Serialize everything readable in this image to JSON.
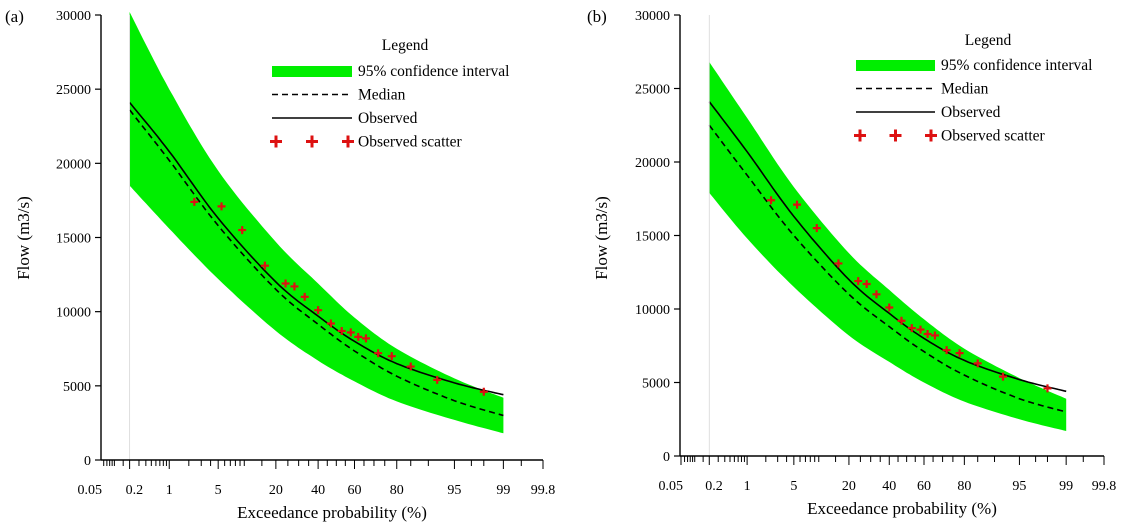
{
  "chart_data": [
    {
      "panel_label": "(a)",
      "type": "line",
      "xlabel": "Exceedance probability (%)",
      "ylabel": "Flow (m3/s)",
      "x_scale": "normal-probability",
      "x_tick_labels": [
        "0.05",
        "0.2",
        "1",
        "5",
        "20",
        "40",
        "60",
        "80",
        "95",
        "99",
        "99.8"
      ],
      "x_ticks": [
        0.05,
        0.2,
        1,
        5,
        20,
        40,
        60,
        80,
        95,
        99,
        99.8
      ],
      "xlim": [
        0.02,
        99.9
      ],
      "y_ticks": [
        0,
        5000,
        10000,
        15000,
        20000,
        25000,
        30000
      ],
      "ylim": [
        0,
        30000
      ],
      "legend": {
        "title": "Legend",
        "placement": "top-right",
        "entries": [
          "95% confidence interval",
          "Median",
          "Observed",
          "Observed scatter"
        ]
      },
      "series": [
        {
          "name": "95% confidence interval",
          "kind": "band",
          "x": [
            0.2,
            1,
            5,
            20,
            40,
            60,
            80,
            95,
            99
          ],
          "upper": [
            30200,
            25000,
            19500,
            14700,
            11900,
            9600,
            7500,
            5500,
            4200
          ],
          "lower": [
            18500,
            15600,
            12200,
            8700,
            6700,
            5300,
            3950,
            2700,
            1800
          ]
        },
        {
          "name": "Median",
          "kind": "dashed",
          "x": [
            0.2,
            1,
            5,
            20,
            40,
            60,
            80,
            95,
            99
          ],
          "y": [
            23600,
            20200,
            15800,
            11500,
            9150,
            7350,
            5650,
            4000,
            3000
          ]
        },
        {
          "name": "Observed",
          "kind": "solid",
          "x": [
            0.2,
            1,
            5,
            20,
            40,
            60,
            80,
            95,
            99
          ],
          "y": [
            24100,
            20800,
            16300,
            12000,
            9700,
            8000,
            6500,
            5200,
            4400
          ]
        },
        {
          "name": "Observed scatter",
          "kind": "marker",
          "x": [
            2.4,
            5.5,
            9.5,
            16,
            24,
            28,
            33,
            40,
            47,
            53,
            58,
            62,
            66,
            72,
            78,
            85,
            92,
            98
          ],
          "y": [
            17400,
            17100,
            15500,
            13100,
            11900,
            11700,
            11000,
            10100,
            9200,
            8700,
            8600,
            8300,
            8200,
            7200,
            7000,
            6300,
            5400,
            4600
          ]
        }
      ]
    },
    {
      "panel_label": "(b)",
      "type": "line",
      "xlabel": "Exceedance probability (%)",
      "ylabel": "Flow (m3/s)",
      "x_scale": "normal-probability",
      "x_tick_labels": [
        "0.05",
        "0.2",
        "1",
        "5",
        "20",
        "40",
        "60",
        "80",
        "95",
        "99",
        "99.8"
      ],
      "x_ticks": [
        0.05,
        0.2,
        1,
        5,
        20,
        40,
        60,
        80,
        95,
        99,
        99.8
      ],
      "xlim": [
        0.02,
        99.9
      ],
      "y_ticks": [
        0,
        5000,
        10000,
        15000,
        20000,
        25000,
        30000
      ],
      "ylim": [
        0,
        30000
      ],
      "legend": {
        "title": "Legend",
        "placement": "top-right",
        "entries": [
          "95% confidence interval",
          "Median",
          "Observed",
          "Observed scatter"
        ]
      },
      "series": [
        {
          "name": "95% confidence interval",
          "kind": "band",
          "x": [
            0.2,
            1,
            5,
            20,
            40,
            60,
            80,
            95,
            99
          ],
          "upper": [
            26800,
            23000,
            18300,
            13800,
            11300,
            9300,
            7300,
            5300,
            3900
          ],
          "lower": [
            17900,
            14800,
            11500,
            8200,
            6400,
            5000,
            3700,
            2500,
            1700
          ]
        },
        {
          "name": "Median",
          "kind": "dashed",
          "x": [
            0.2,
            1,
            5,
            20,
            40,
            60,
            80,
            95,
            99
          ],
          "y": [
            22500,
            19100,
            15000,
            11000,
            8800,
            7100,
            5500,
            3900,
            3000
          ]
        },
        {
          "name": "Observed",
          "kind": "solid",
          "x": [
            0.2,
            1,
            5,
            20,
            40,
            60,
            80,
            95,
            99
          ],
          "y": [
            24100,
            20700,
            16300,
            12000,
            9700,
            8000,
            6500,
            5200,
            4400
          ]
        },
        {
          "name": "Observed scatter",
          "kind": "marker",
          "x": [
            2.4,
            5.5,
            9.5,
            16,
            24,
            28,
            33,
            40,
            47,
            53,
            58,
            62,
            66,
            72,
            78,
            85,
            92,
            98
          ],
          "y": [
            17400,
            17100,
            15500,
            13100,
            11900,
            11700,
            11000,
            10100,
            9200,
            8700,
            8600,
            8300,
            8200,
            7200,
            7000,
            6300,
            5400,
            4600
          ]
        }
      ]
    }
  ],
  "colors": {
    "band": "#00ee00",
    "median": "#000000",
    "observed": "#000000",
    "scatter": "#dd1111",
    "axis": "#000000"
  }
}
